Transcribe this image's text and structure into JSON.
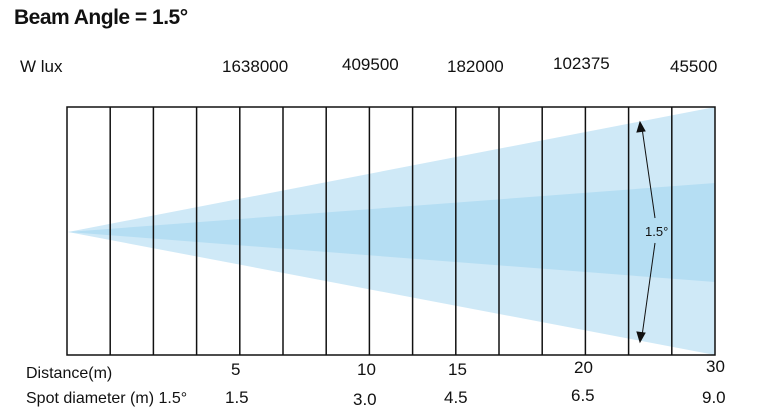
{
  "title": "Beam Angle = 1.5°",
  "lux_label": "W lux",
  "lux_values": [
    "1638000",
    "409500",
    "182000",
    "102375",
    "45500"
  ],
  "distance_label": "Distance(m)",
  "distances": [
    "5",
    "10",
    "15",
    "20",
    "30"
  ],
  "spot_label": "Spot diameter (m) 1.5°",
  "spot_diameters": [
    "1.5",
    "3.0",
    "4.5",
    "6.5",
    "9.0"
  ],
  "angle_annotation": "1.5°",
  "colors": {
    "beam_outer": "#cfe9f7",
    "beam_inner": "#b5def3",
    "grid": "#111111"
  }
}
